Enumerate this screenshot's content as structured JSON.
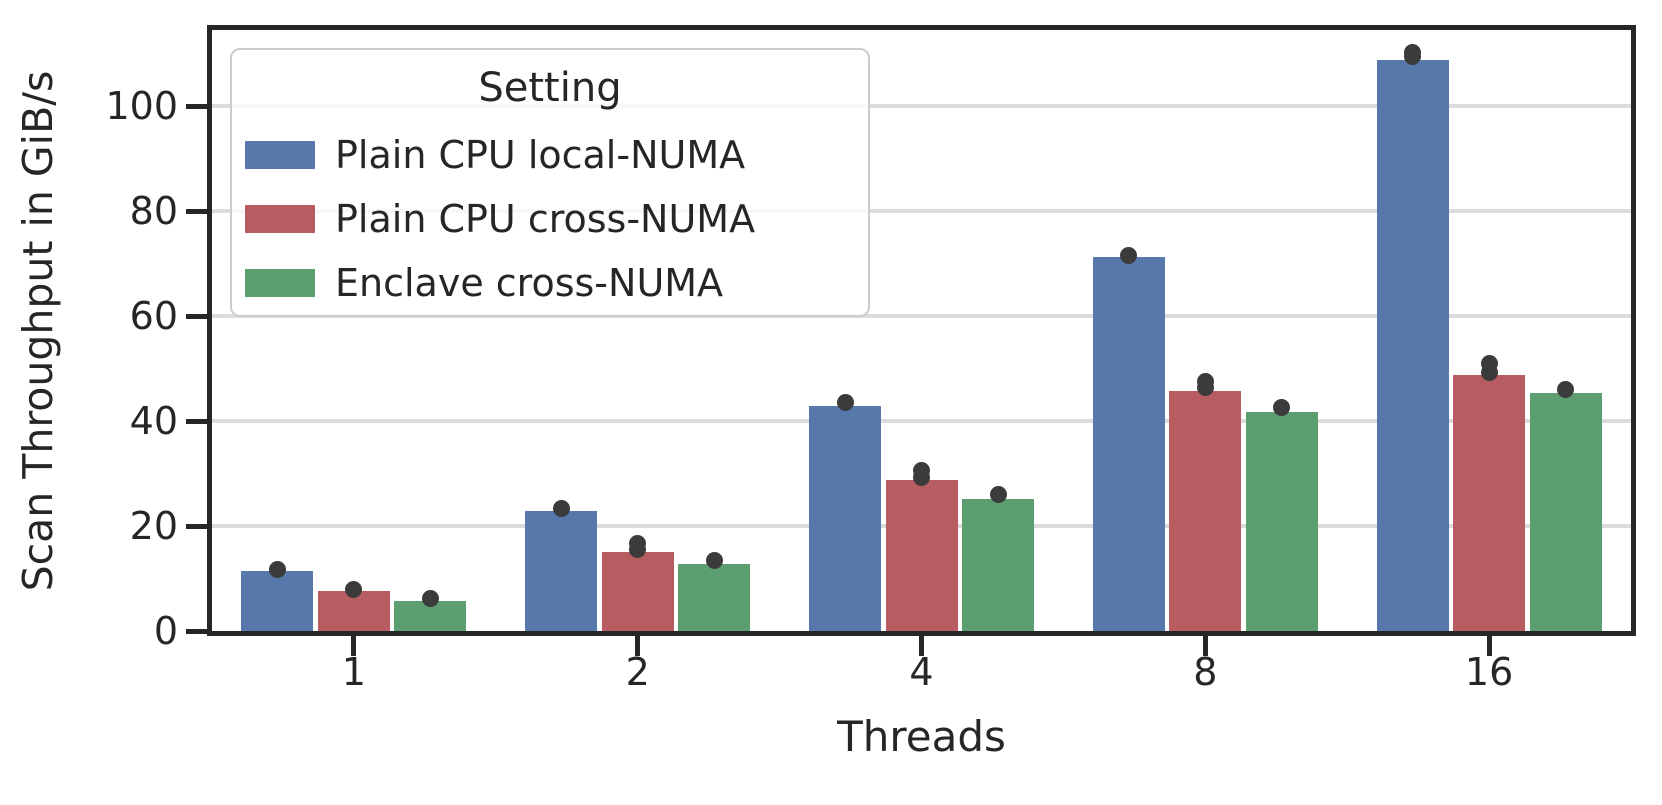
{
  "chart_data": {
    "type": "bar",
    "title": "",
    "xlabel": "Threads",
    "ylabel": "Scan Throughput in GiB/s",
    "categories": [
      "1",
      "2",
      "4",
      "8",
      "16"
    ],
    "ylim": [
      0,
      114.5
    ],
    "yticks": [
      0,
      20,
      40,
      60,
      80,
      100
    ],
    "grid": "horizontal",
    "legend": {
      "title": "Setting",
      "position": "upper-left"
    },
    "point_marker_color": "#3b3b3b",
    "axis_color": "#262626",
    "gridline_color": "#dcdcdc",
    "series": [
      {
        "name": "Plain CPU local-NUMA",
        "color": "#5678ab",
        "values": [
          11.4,
          22.8,
          42.8,
          71.2,
          108.8
        ],
        "points": [
          [
            11.8
          ],
          [
            23.4
          ],
          [
            43.6
          ],
          [
            71.5
          ],
          [
            109.5,
            110.3
          ]
        ]
      },
      {
        "name": "Plain CPU cross-NUMA",
        "color": "#b75c61",
        "values": [
          7.6,
          15.0,
          28.8,
          45.8,
          48.8
        ],
        "points": [
          [
            7.9
          ],
          [
            15.6,
            16.6
          ],
          [
            29.2,
            30.6
          ],
          [
            46.3,
            47.6
          ],
          [
            49.3,
            50.9
          ]
        ]
      },
      {
        "name": "Enclave cross-NUMA",
        "color": "#5d9e70",
        "values": [
          5.7,
          12.7,
          25.2,
          41.8,
          45.3
        ],
        "points": [
          [
            6.2
          ],
          [
            13.5
          ],
          [
            26.0
          ],
          [
            42.5
          ],
          [
            46.1
          ]
        ]
      }
    ]
  }
}
